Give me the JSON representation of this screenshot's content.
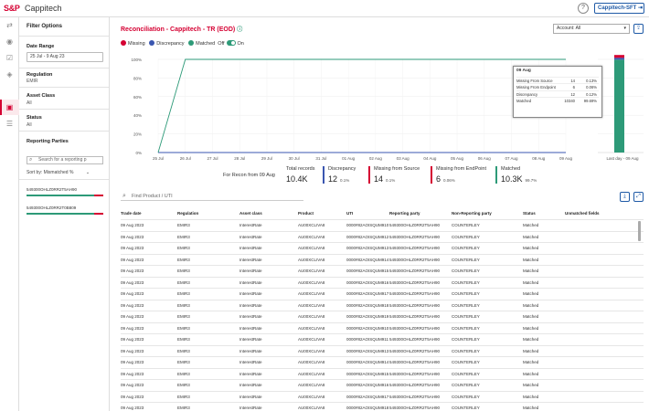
{
  "header": {
    "logo": "S&P",
    "app_title": "Cappitech",
    "help": "?",
    "user_button": "Cappitech-SFT"
  },
  "rail_icons": [
    "refresh-icon",
    "eye-icon",
    "checklist-icon",
    "layers-icon",
    "reconcile-icon",
    "table-icon"
  ],
  "filters": {
    "title": "Filter Options",
    "date_label": "Date Range",
    "date_value": "25 Jul - 9 Aug 23",
    "regulation_label": "Regulation",
    "regulation_value": "EMIR",
    "asset_label": "Asset Class",
    "asset_value": "All",
    "status_label": "Status",
    "status_value": "All",
    "parties_label": "Reporting Parties",
    "search_placeholder": "Search for a reporting p",
    "sort_label": "Sort by:",
    "sort_value": "Mismatched %",
    "parties": [
      {
        "id": "549300OHLZ0RR2T5AH90",
        "matched_fraction": 0.88
      },
      {
        "id": "549300OHLZ0RR2T0B809",
        "matched_fraction": 0.88
      }
    ]
  },
  "panel": {
    "title": "Reconciliation - Cappitech - TR (EOD)",
    "account_select": "Account: All",
    "legend": {
      "missing": "Missing",
      "discrepancy": "Discrepancy",
      "matched": "Matched",
      "off": "Off",
      "on": "On"
    },
    "colors": {
      "missing": "#d50032",
      "discrepancy": "#3a56b0",
      "matched": "#2d9a78"
    }
  },
  "chart_data": {
    "type": "line",
    "x": [
      "25 Jul",
      "26 Jul",
      "27 Jul",
      "28 Jul",
      "29 Jul",
      "30 Jul",
      "31 Jul",
      "01 Aug",
      "02 Aug",
      "03 Aug",
      "04 Aug",
      "05 Aug",
      "06 Aug",
      "07 Aug",
      "08 Aug",
      "09 Aug"
    ],
    "y_ticks": [
      "100%",
      "80%",
      "60%",
      "40%",
      "20%",
      "0%"
    ],
    "ylim": [
      0,
      100
    ],
    "series": [
      {
        "name": "Matched",
        "values": [
          0,
          100,
          100,
          100,
          100,
          100,
          100,
          100,
          100,
          100,
          100,
          100,
          100,
          100,
          100,
          100
        ]
      },
      {
        "name": "Discrepancy",
        "values": [
          0,
          0,
          0,
          0,
          0,
          0,
          0,
          0,
          0,
          0,
          0,
          0,
          0,
          0,
          0,
          0
        ]
      },
      {
        "name": "Missing",
        "values": [
          0,
          0,
          0,
          0,
          0,
          0,
          0,
          0,
          0,
          0,
          0,
          0,
          0,
          0,
          0,
          0
        ]
      }
    ],
    "last_day": {
      "label": "Last day - 09 Aug",
      "matched": 99.7,
      "discrepancy": 0.1,
      "missing": 0.2
    }
  },
  "tooltip": {
    "date": "09 Aug",
    "rows": [
      {
        "label": "Missing From Source",
        "value": "14",
        "pct": "0.13%"
      },
      {
        "label": "Missing From Endpoint",
        "value": "6",
        "pct": "0.06%"
      },
      {
        "label": "Discrepancy",
        "value": "12",
        "pct": "0.12%"
      },
      {
        "label": "Matched",
        "value": "10340",
        "pct": "99.69%"
      }
    ]
  },
  "summary": {
    "label": "For Recon from 09 Aug",
    "cards": [
      {
        "title": "Total records",
        "value": "10.4K",
        "pct": ""
      },
      {
        "title": "Discrepancy",
        "value": "12",
        "pct": "0.1%"
      },
      {
        "title": "Missing from Source",
        "value": "14",
        "pct": "0.1%"
      },
      {
        "title": "Missing from EndPoint",
        "value": "6",
        "pct": "0.06%"
      },
      {
        "title": "Matched",
        "value": "10.3K",
        "pct": "99.7%"
      }
    ]
  },
  "table": {
    "search_placeholder": "Find Product / UTI",
    "columns": [
      "Trade date",
      "Regulation",
      "Asset class",
      "Product",
      "UTI",
      "Reporting party",
      "Non-Reporting party",
      "Status",
      "Unmatched fields"
    ],
    "rows": [
      [
        "09 Aug 2023",
        "EMIR3",
        "InterestRate",
        "AU00XCLIVA8",
        "0000#82AOISQUM910",
        "549300OHLZ0RR2T5AH90",
        "COUNTERLEY",
        "Matched",
        ""
      ],
      [
        "09 Aug 2023",
        "EMIR3",
        "InterestRate",
        "AU00XCLIVA8",
        "0000#82AOISQUM912",
        "549300OHLZ0RR2T5AH90",
        "COUNTERLEY",
        "Matched",
        ""
      ],
      [
        "09 Aug 2023",
        "EMIR3",
        "InterestRate",
        "AU00XCLIVA8",
        "0000#82AOISQUM913",
        "549300OHLZ0RR2T5AH90",
        "COUNTERLEY",
        "Matched",
        ""
      ],
      [
        "09 Aug 2023",
        "EMIR3",
        "InterestRate",
        "AU00XCLIVA8",
        "0000#82AOISQUM914",
        "549300OHLZ0RR2T5AH90",
        "COUNTERLEY",
        "Matched",
        ""
      ],
      [
        "09 Aug 2023",
        "EMIR3",
        "InterestRate",
        "AU00XCLIVA8",
        "0000#82AOISQUM915",
        "549300OHLZ0RR2T5AH90",
        "COUNTERLEY",
        "Matched",
        ""
      ],
      [
        "09 Aug 2023",
        "EMIR3",
        "InterestRate",
        "AU00XCLIVA8",
        "0000#82AOISQUM916",
        "549300OHLZ0RR2T5AH90",
        "COUNTERLEY",
        "Matched",
        ""
      ],
      [
        "09 Aug 2023",
        "EMIR3",
        "InterestRate",
        "AU00XCLIVA8",
        "0000#82AOISQUM917",
        "549300OHLZ0RR2T5AH90",
        "COUNTERLEY",
        "Matched",
        ""
      ],
      [
        "09 Aug 2023",
        "EMIR3",
        "InterestRate",
        "AU00XCLIVA8",
        "0000#82AOISQUM918",
        "549300OHLZ0RR2T5AH90",
        "COUNTERLEY",
        "Matched",
        ""
      ],
      [
        "09 Aug 2023",
        "EMIR3",
        "InterestRate",
        "AU00XCLIVA8",
        "0000#82AOISQUM919",
        "549300OHLZ0RR2T5AH90",
        "COUNTERLEY",
        "Matched",
        ""
      ],
      [
        "09 Aug 2023",
        "EMIR3",
        "InterestRate",
        "AU00XCLIVA8",
        "0000#82AOISQUM910",
        "549300OHLZ0RR2T5AH90",
        "COUNTERLEY",
        "Matched",
        ""
      ],
      [
        "09 Aug 2023",
        "EMIR3",
        "InterestRate",
        "AU00XCLIVA8",
        "0000#82AOISQUM911",
        "549300OHLZ0RR2T5AH90",
        "COUNTERLEY",
        "Matched",
        ""
      ],
      [
        "09 Aug 2023",
        "EMIR3",
        "InterestRate",
        "AU00XCLIVA8",
        "0000#82AOISQUM913",
        "549300OHLZ0RR2T5AH90",
        "COUNTERLEY",
        "Matched",
        ""
      ],
      [
        "09 Aug 2023",
        "EMIR3",
        "InterestRate",
        "AU00XCLIVA8",
        "0000#82AOISQUM914",
        "549300OHLZ0RR2T5AH90",
        "COUNTERLEY",
        "Matched",
        ""
      ],
      [
        "09 Aug 2023",
        "EMIR3",
        "InterestRate",
        "AU00XCLIVA8",
        "0000#82AOISQUM915",
        "549300OHLZ0RR2T5AH90",
        "COUNTERLEY",
        "Matched",
        ""
      ],
      [
        "09 Aug 2023",
        "EMIR3",
        "InterestRate",
        "AU00XCLIVA8",
        "0000#82AOISQUM916",
        "549300OHLZ0RR2T5AH90",
        "COUNTERLEY",
        "Matched",
        ""
      ],
      [
        "09 Aug 2023",
        "EMIR3",
        "InterestRate",
        "AU00XCLIVA8",
        "0000#82AOISQUM917",
        "549300OHLZ0RR2T5AH90",
        "COUNTERLEY",
        "Matched",
        ""
      ],
      [
        "09 Aug 2023",
        "EMIR3",
        "InterestRate",
        "AU00XCLIVA8",
        "0000#82AOISQUM918",
        "549300OHLZ0RR2T5AH90",
        "COUNTERLEY",
        "Matched",
        ""
      ]
    ]
  }
}
